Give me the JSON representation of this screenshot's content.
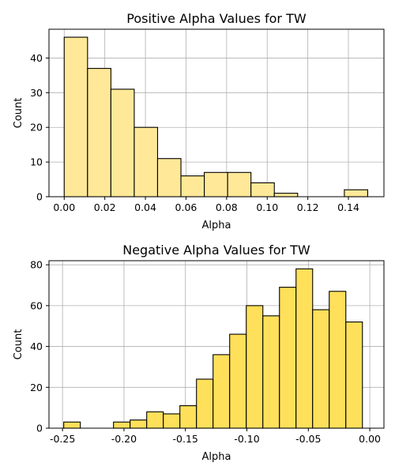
{
  "chart_data": [
    {
      "type": "bar",
      "title": "Positive Alpha Values for TW",
      "xlabel": "Alpha",
      "ylabel": "Count",
      "bar_color": "#ffe998",
      "edge_color": "#000000",
      "grid": true,
      "xlim": [
        -0.0075,
        0.1575
      ],
      "ylim": [
        0,
        48.3
      ],
      "xticks": [
        0.0,
        0.02,
        0.04,
        0.06,
        0.08,
        0.1,
        0.12,
        0.14
      ],
      "xtick_labels": [
        "0.00",
        "0.02",
        "0.04",
        "0.06",
        "0.08",
        "0.10",
        "0.12",
        "0.14"
      ],
      "yticks": [
        0,
        10,
        20,
        30,
        40
      ],
      "ytick_labels": [
        "0",
        "10",
        "20",
        "30",
        "40"
      ],
      "bins": [
        {
          "x0": 0.0,
          "x1": 0.0115,
          "count": 46
        },
        {
          "x0": 0.0115,
          "x1": 0.023,
          "count": 37
        },
        {
          "x0": 0.023,
          "x1": 0.0345,
          "count": 31
        },
        {
          "x0": 0.0345,
          "x1": 0.046,
          "count": 20
        },
        {
          "x0": 0.046,
          "x1": 0.0575,
          "count": 11
        },
        {
          "x0": 0.0575,
          "x1": 0.069,
          "count": 6
        },
        {
          "x0": 0.069,
          "x1": 0.0805,
          "count": 7
        },
        {
          "x0": 0.0805,
          "x1": 0.092,
          "count": 7
        },
        {
          "x0": 0.092,
          "x1": 0.1035,
          "count": 4
        },
        {
          "x0": 0.1035,
          "x1": 0.115,
          "count": 1
        },
        {
          "x0": 0.115,
          "x1": 0.1265,
          "count": 0
        },
        {
          "x0": 0.1265,
          "x1": 0.138,
          "count": 0
        },
        {
          "x0": 0.138,
          "x1": 0.1495,
          "count": 2
        }
      ]
    },
    {
      "type": "bar",
      "title": "Negative Alpha Values for TW",
      "xlabel": "Alpha",
      "ylabel": "Count",
      "bar_color": "#ffe05a",
      "edge_color": "#000000",
      "grid": true,
      "xlim": [
        -0.261,
        0.0115
      ],
      "ylim": [
        0,
        82
      ],
      "xticks": [
        -0.25,
        -0.2,
        -0.15,
        -0.1,
        -0.05,
        0.0
      ],
      "xtick_labels": [
        "-0.25",
        "-0.20",
        "-0.15",
        "-0.10",
        "-0.05",
        "0.00"
      ],
      "yticks": [
        0,
        20,
        40,
        60,
        80
      ],
      "ytick_labels": [
        "0",
        "20",
        "40",
        "60",
        "80"
      ],
      "bins": [
        {
          "x0": -0.249,
          "x1": -0.2355,
          "count": 3
        },
        {
          "x0": -0.2355,
          "x1": -0.222,
          "count": 0
        },
        {
          "x0": -0.222,
          "x1": -0.2085,
          "count": 0
        },
        {
          "x0": -0.2085,
          "x1": -0.195,
          "count": 3
        },
        {
          "x0": -0.195,
          "x1": -0.1815,
          "count": 4
        },
        {
          "x0": -0.1815,
          "x1": -0.168,
          "count": 8
        },
        {
          "x0": -0.168,
          "x1": -0.1545,
          "count": 7
        },
        {
          "x0": -0.1545,
          "x1": -0.141,
          "count": 11
        },
        {
          "x0": -0.141,
          "x1": -0.1275,
          "count": 24
        },
        {
          "x0": -0.1275,
          "x1": -0.114,
          "count": 36
        },
        {
          "x0": -0.114,
          "x1": -0.1005,
          "count": 46
        },
        {
          "x0": -0.1005,
          "x1": -0.087,
          "count": 60
        },
        {
          "x0": -0.087,
          "x1": -0.0735,
          "count": 55
        },
        {
          "x0": -0.0735,
          "x1": -0.06,
          "count": 69
        },
        {
          "x0": -0.06,
          "x1": -0.0465,
          "count": 78
        },
        {
          "x0": -0.0465,
          "x1": -0.033,
          "count": 58
        },
        {
          "x0": -0.033,
          "x1": -0.0195,
          "count": 67
        },
        {
          "x0": -0.0195,
          "x1": -0.006,
          "count": 52
        }
      ]
    }
  ]
}
